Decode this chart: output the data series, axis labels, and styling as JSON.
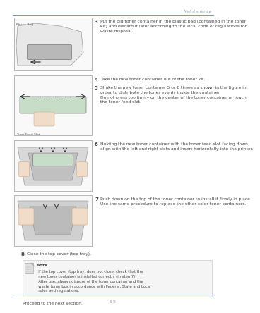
{
  "title_text": "Maintenance",
  "page_number": "5-5",
  "bg_color": "#ffffff",
  "header_line_color": "#7799bb",
  "footer_line_color": "#7799bb",
  "title_color": "#999999",
  "text_color": "#444444",
  "box_border": "#aaaaaa",
  "box_fill": "#f9f9f9",
  "step3_text": "Put the old toner container in the plastic bag (contained in the toner\nkit) and discard it later according to the local code or regulations for\nwaste disposal.",
  "step4_text": "Take the new toner container out of the toner kit.",
  "step5_text": "Shake the new toner container 5 or 6 times as shown in the figure in\norder to distribute the toner evenly inside the container.\nDo not press too firmly on the center of the toner container or touch\nthe toner feed slot.",
  "img1_label": "Plastic Bag",
  "img2_label": "Toner Feed Slot",
  "step6_text": "Holding the new toner container with the toner feed slot facing down,\nalign with the left and right slots and insert horizontally into the printer.",
  "step7_text": "Push down on the top of the toner container to install it firmly in place.\nUse the same procedure to replace the other color toner containers.",
  "step8_text": "Close the top cover (top tray).",
  "note_title": "Note",
  "note_text": "  If the top cover (top tray) does not close, check that the\n  new toner container is installed correctly (in step 7).\n  After use, always dispose of the toner container and the\n  waste toner box in accordance with Federal, State and Local\n  rules and regulations.",
  "proceed_text": "Proceed to the next section.",
  "green_color": "#c8ddc8",
  "grey_light": "#e8e8e8",
  "grey_mid": "#cccccc",
  "skin_color": "#f0dcc8"
}
